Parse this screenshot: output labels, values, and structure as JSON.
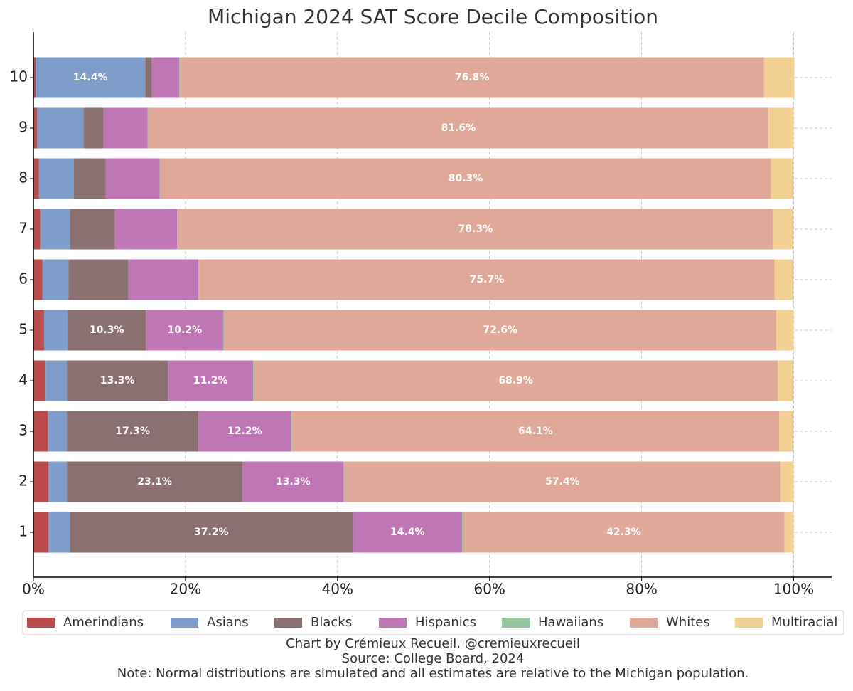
{
  "chart_data": {
    "type": "stacked_barh",
    "title": "Michigan 2024 SAT Score Decile Composition",
    "notes": [
      "Chart by Crémieux Recueil, @cremieuxrecueil",
      "Source: College Board, 2024",
      "Note: Normal distributions are simulated and all estimates are relative to the Michigan population."
    ],
    "categories": [
      "1",
      "2",
      "3",
      "4",
      "5",
      "6",
      "7",
      "8",
      "9",
      "10"
    ],
    "series": [
      {
        "name": "Amerindians",
        "color": "#bb4a4c",
        "values": [
          2.0,
          2.0,
          1.9,
          1.6,
          1.4,
          1.2,
          0.9,
          0.7,
          0.5,
          0.3
        ]
      },
      {
        "name": "Asians",
        "color": "#7f9dca",
        "values": [
          2.8,
          2.4,
          2.5,
          2.8,
          3.1,
          3.4,
          3.9,
          4.6,
          6.1,
          14.4
        ],
        "value_labels": [
          null,
          null,
          null,
          null,
          null,
          null,
          null,
          null,
          null,
          "14.4%"
        ]
      },
      {
        "name": "Blacks",
        "color": "#8a7070",
        "values": [
          37.2,
          23.1,
          17.3,
          13.3,
          10.3,
          7.9,
          5.9,
          4.2,
          2.6,
          0.9
        ],
        "value_labels": [
          "37.2%",
          "23.1%",
          "17.3%",
          "13.3%",
          "10.3%",
          null,
          null,
          null,
          null,
          null
        ]
      },
      {
        "name": "Hispanics",
        "color": "#bf76b4",
        "values": [
          14.4,
          13.3,
          12.2,
          11.2,
          10.2,
          9.2,
          8.2,
          7.1,
          5.8,
          3.6
        ],
        "value_labels": [
          "14.4%",
          "13.3%",
          "12.2%",
          "11.2%",
          "10.2%",
          null,
          null,
          null,
          null,
          null
        ]
      },
      {
        "name": "Hawaiians",
        "color": "#94c7a0",
        "values": [
          0.1,
          0.1,
          0.1,
          0.1,
          0.1,
          0.1,
          0.1,
          0.1,
          0.1,
          0.1
        ]
      },
      {
        "name": "Whites",
        "color": "#e0a898",
        "values": [
          42.3,
          57.4,
          64.1,
          68.9,
          72.6,
          75.7,
          78.3,
          80.3,
          81.6,
          76.8
        ],
        "value_labels": [
          "42.3%",
          "57.4%",
          "64.1%",
          "68.9%",
          "72.6%",
          "75.7%",
          "78.3%",
          "80.3%",
          "81.6%",
          "76.8%"
        ]
      },
      {
        "name": "Multiracial",
        "color": "#f2d094",
        "values": [
          1.2,
          1.7,
          1.8,
          2.0,
          2.3,
          2.4,
          2.6,
          2.9,
          3.3,
          4.0
        ]
      }
    ],
    "xlim": [
      0,
      105
    ],
    "xticks": [
      {
        "value": 0,
        "label": "0%"
      },
      {
        "value": 20,
        "label": "20%"
      },
      {
        "value": 40,
        "label": "40%"
      },
      {
        "value": 60,
        "label": "60%"
      },
      {
        "value": 80,
        "label": "80%"
      },
      {
        "value": 100,
        "label": "100%"
      }
    ],
    "grid": true,
    "legend": "bottom"
  }
}
